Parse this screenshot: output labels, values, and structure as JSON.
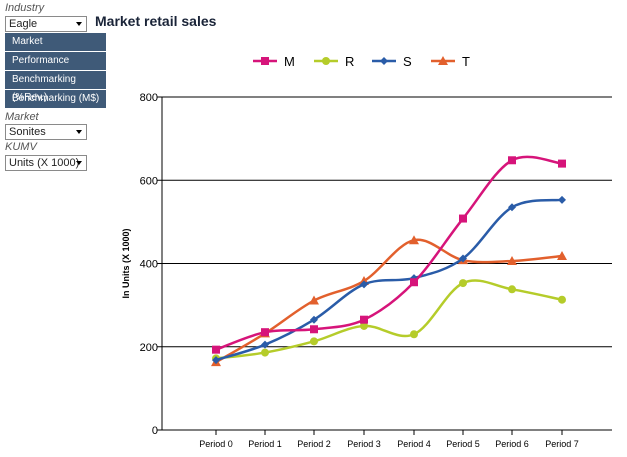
{
  "sidebar": {
    "industry_label": "Industry",
    "industry_value": "Eagle",
    "menu_items": [
      "Market",
      "Performance",
      "Benchmarking (%Rev.)",
      "Benchmarking (M$)"
    ],
    "market_label": "Market",
    "market_value": "Sonites",
    "kumv_label": "KUMV",
    "kumv_value": "Units (X 1000)"
  },
  "chart_data": {
    "type": "line",
    "title": "Market retail sales",
    "xlabel": "",
    "ylabel": "In Units (X 1000)",
    "categories": [
      "Period 0",
      "Period 1",
      "Period 2",
      "Period 3",
      "Period 4",
      "Period 5",
      "Period 6",
      "Period 7"
    ],
    "ylim": [
      0,
      800
    ],
    "yticks": [
      0,
      200,
      400,
      600,
      800
    ],
    "grid": true,
    "legend": "top",
    "series": [
      {
        "name": "M",
        "color": "#d6147a",
        "marker": "square",
        "values": [
          193,
          235,
          242,
          265,
          355,
          508,
          648,
          640
        ]
      },
      {
        "name": "R",
        "color": "#b5cc2a",
        "marker": "circle",
        "values": [
          172,
          186,
          213,
          250,
          230,
          353,
          338,
          313
        ]
      },
      {
        "name": "S",
        "color": "#2a5ca8",
        "marker": "diamond",
        "values": [
          168,
          205,
          265,
          350,
          365,
          412,
          535,
          553
        ]
      },
      {
        "name": "T",
        "color": "#e2602d",
        "marker": "triangle",
        "values": [
          163,
          232,
          311,
          358,
          456,
          408,
          406,
          418
        ]
      }
    ]
  }
}
